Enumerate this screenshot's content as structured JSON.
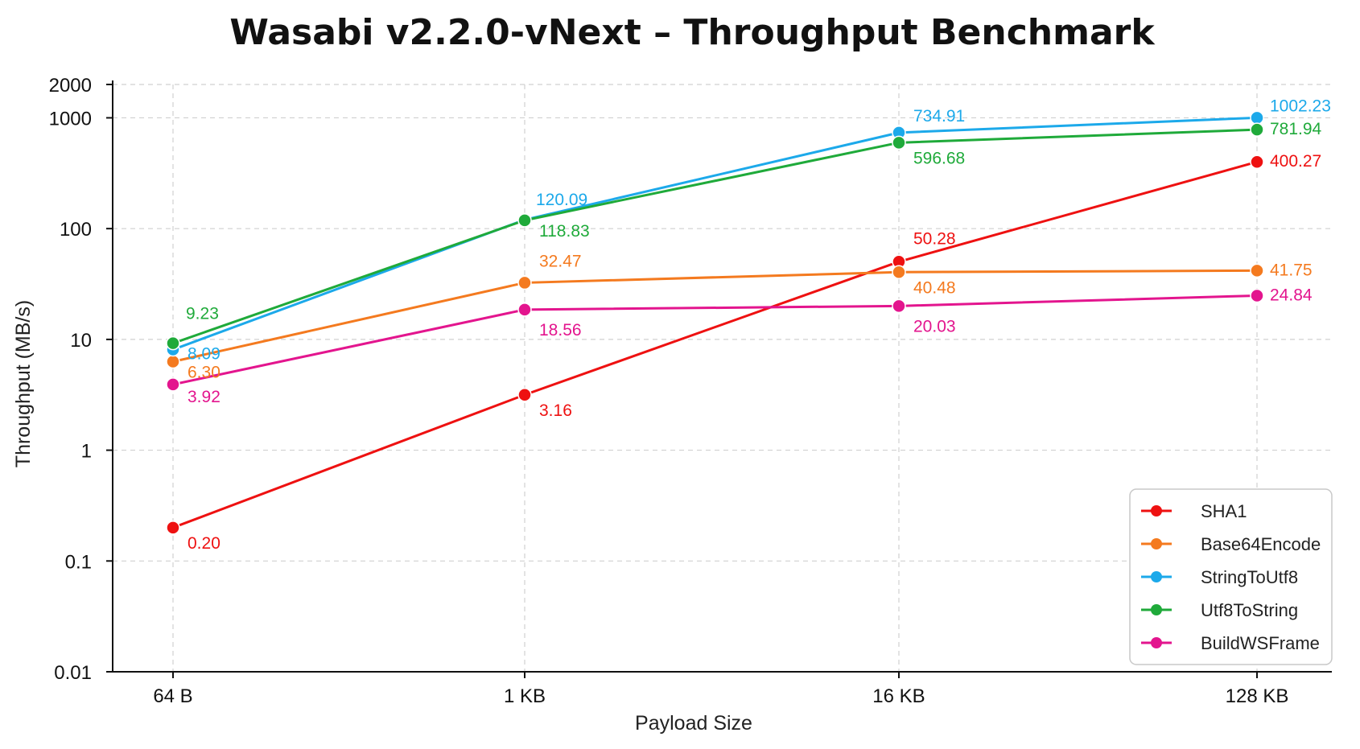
{
  "chart_data": {
    "type": "line",
    "title": "Wasabi v2.2.0-vNext – Throughput Benchmark",
    "xlabel": "Payload Size",
    "ylabel": "Throughput (MB/s)",
    "y_scale": "log",
    "ylim": [
      0.01,
      2000
    ],
    "yticks": [
      0.01,
      0.1,
      1,
      10,
      100,
      1000,
      2000
    ],
    "ytick_labels": [
      "0.01",
      "0.1",
      "1",
      "10",
      "100",
      "1000",
      "2000"
    ],
    "categories": [
      "64 B",
      "1 KB",
      "16 KB",
      "128 KB"
    ],
    "grid": true,
    "legend_position": "bottom-right",
    "series": [
      {
        "name": "SHA1",
        "color": "#ee1111",
        "values": [
          0.2,
          3.16,
          50.28,
          400.27
        ],
        "labels": [
          "0.20",
          "3.16",
          "50.28",
          "400.27"
        ]
      },
      {
        "name": "Base64Encode",
        "color": "#f47a1f",
        "values": [
          6.3,
          32.47,
          40.48,
          41.75
        ],
        "labels": [
          "6.30",
          "32.47",
          "40.48",
          "41.75"
        ]
      },
      {
        "name": "StringToUtf8",
        "color": "#1ca9ea",
        "values": [
          8.09,
          120.09,
          734.91,
          1002.23
        ],
        "labels": [
          "8.09",
          "120.09",
          "734.91",
          "1002.23"
        ]
      },
      {
        "name": "Utf8ToString",
        "color": "#1faa3a",
        "values": [
          9.23,
          118.83,
          596.68,
          781.94
        ],
        "labels": [
          "9.23",
          "118.83",
          "596.68",
          "781.94"
        ]
      },
      {
        "name": "BuildWSFrame",
        "color": "#e3158e",
        "values": [
          3.92,
          18.56,
          20.03,
          24.84
        ],
        "labels": [
          "3.92",
          "18.56",
          "20.03",
          "24.84"
        ]
      }
    ]
  }
}
